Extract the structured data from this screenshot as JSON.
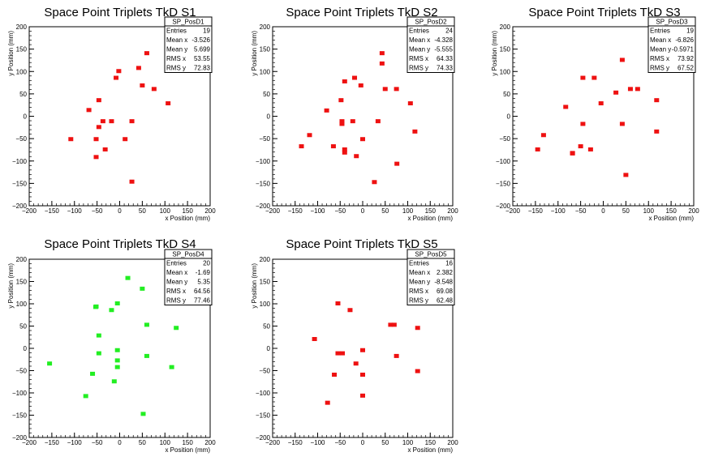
{
  "chart_data": [
    {
      "type": "scatter",
      "title": "Space Point Triplets TkD S1",
      "xlabel": "x Position (mm)",
      "ylabel": "y Position (mm)",
      "xlim": [
        -200,
        200
      ],
      "ylim": [
        -200,
        200
      ],
      "xticks": [
        "−200",
        "−150",
        "−100",
        "−50",
        "0",
        "50",
        "100",
        "150",
        "200"
      ],
      "yticks": [
        "−200",
        "−150",
        "−100",
        "−50",
        "0",
        "50",
        "100",
        "150",
        "200"
      ],
      "marker_color": "#ee1111",
      "stats": {
        "name": "SP_PosD1",
        "rows": [
          {
            "label": "Entries",
            "value": "19"
          },
          {
            "label": "Mean x",
            "value": "-3.526"
          },
          {
            "label": "Mean y",
            "value": "5.699"
          },
          {
            "label": "RMS x",
            "value": "53.55"
          },
          {
            "label": "RMS y",
            "value": "72.83"
          }
        ]
      },
      "points": [
        [
          -108,
          -52
        ],
        [
          -68,
          13
        ],
        [
          -52,
          -92
        ],
        [
          -52,
          -52
        ],
        [
          -46,
          -25
        ],
        [
          -46,
          35
        ],
        [
          -37,
          -12
        ],
        [
          -32,
          -75
        ],
        [
          -18,
          -12
        ],
        [
          -8,
          85
        ],
        [
          -2,
          100
        ],
        [
          12,
          -52
        ],
        [
          27,
          -147
        ],
        [
          27,
          -12
        ],
        [
          42,
          107
        ],
        [
          50,
          68
        ],
        [
          60,
          140
        ],
        [
          76,
          60
        ],
        [
          107,
          28
        ]
      ]
    },
    {
      "type": "scatter",
      "title": "Space Point Triplets TkD S2",
      "xlabel": "x Position (mm)",
      "ylabel": "y Position (mm)",
      "xlim": [
        -200,
        200
      ],
      "ylim": [
        -200,
        200
      ],
      "xticks": [
        "−200",
        "−150",
        "−100",
        "−50",
        "0",
        "50",
        "100",
        "150",
        "200"
      ],
      "yticks": [
        "−200",
        "−150",
        "−100",
        "−50",
        "0",
        "50",
        "100",
        "150",
        "200"
      ],
      "marker_color": "#ee1111",
      "stats": {
        "name": "SP_PosD2",
        "rows": [
          {
            "label": "Entries",
            "value": "24"
          },
          {
            "label": "Mean x",
            "value": "-4.328"
          },
          {
            "label": "Mean y",
            "value": "-5.555"
          },
          {
            "label": "RMS x",
            "value": "64.33"
          },
          {
            "label": "RMS y",
            "value": "74.33"
          }
        ]
      },
      "points": [
        [
          -136,
          -68
        ],
        [
          -118,
          -43
        ],
        [
          -80,
          12
        ],
        [
          -65,
          -68
        ],
        [
          -48,
          35
        ],
        [
          -46,
          -12
        ],
        [
          -46,
          -18
        ],
        [
          -40,
          -75
        ],
        [
          -40,
          -82
        ],
        [
          -40,
          77
        ],
        [
          -22,
          -12
        ],
        [
          -18,
          85
        ],
        [
          -14,
          -90
        ],
        [
          -4,
          68
        ],
        [
          0,
          -52
        ],
        [
          26,
          -148
        ],
        [
          34,
          -12
        ],
        [
          43,
          140
        ],
        [
          43,
          117
        ],
        [
          50,
          60
        ],
        [
          75,
          60
        ],
        [
          76,
          -107
        ],
        [
          106,
          28
        ],
        [
          116,
          -35
        ]
      ]
    },
    {
      "type": "scatter",
      "title": "Space Point Triplets TkD S3",
      "xlabel": "x Position (mm)",
      "ylabel": "y Position (mm)",
      "xlim": [
        -200,
        200
      ],
      "ylim": [
        -200,
        200
      ],
      "xticks": [
        "−200",
        "−150",
        "−100",
        "−50",
        "0",
        "50",
        "100",
        "150",
        "200"
      ],
      "yticks": [
        "−200",
        "−150",
        "−100",
        "−50",
        "0",
        "50",
        "100",
        "150",
        "200"
      ],
      "marker_color": "#ee1111",
      "stats": {
        "name": "SP_PosD3",
        "rows": [
          {
            "label": "Entries",
            "value": "19"
          },
          {
            "label": "Mean x",
            "value": "-6.826"
          },
          {
            "label": "Mean y",
            "value": "-0.5971"
          },
          {
            "label": "RMS x",
            "value": "73.92"
          },
          {
            "label": "RMS y",
            "value": "67.52"
          }
        ]
      },
      "points": [
        [
          -145,
          -75
        ],
        [
          -132,
          -43
        ],
        [
          -83,
          20
        ],
        [
          -68,
          -83
        ],
        [
          -50,
          -68
        ],
        [
          -45,
          85
        ],
        [
          -45,
          -18
        ],
        [
          -28,
          -75
        ],
        [
          -20,
          85
        ],
        [
          -5,
          28
        ],
        [
          28,
          52
        ],
        [
          42,
          125
        ],
        [
          42,
          -18
        ],
        [
          50,
          -132
        ],
        [
          60,
          60
        ],
        [
          76,
          60
        ],
        [
          118,
          35
        ],
        [
          118,
          -35
        ],
        [
          -68,
          -84
        ]
      ]
    },
    {
      "type": "scatter",
      "title": "Space Point Triplets TkD S4",
      "xlabel": "x Position (mm)",
      "ylabel": "y Position (mm)",
      "xlim": [
        -200,
        200
      ],
      "ylim": [
        -200,
        200
      ],
      "xticks": [
        "−200",
        "−150",
        "−100",
        "−50",
        "0",
        "50",
        "100",
        "150",
        "200"
      ],
      "yticks": [
        "−200",
        "−150",
        "−100",
        "−50",
        "0",
        "50",
        "100",
        "150",
        "200"
      ],
      "marker_color": "#22ee22",
      "stats": {
        "name": "SP_PosD4",
        "rows": [
          {
            "label": "Entries",
            "value": "20"
          },
          {
            "label": "Mean x",
            "value": "-1.69"
          },
          {
            "label": "Mean y",
            "value": "5.35"
          },
          {
            "label": "RMS x",
            "value": "64.56"
          },
          {
            "label": "RMS y",
            "value": "77.46"
          }
        ]
      },
      "points": [
        [
          -155,
          -35
        ],
        [
          -75,
          -108
        ],
        [
          -60,
          -58
        ],
        [
          -52,
          93
        ],
        [
          -46,
          28
        ],
        [
          -46,
          -12
        ],
        [
          -18,
          85
        ],
        [
          -12,
          -75
        ],
        [
          -5,
          100
        ],
        [
          -5,
          -5
        ],
        [
          -5,
          -28
        ],
        [
          -5,
          -43
        ],
        [
          18,
          157
        ],
        [
          50,
          133
        ],
        [
          52,
          -148
        ],
        [
          60,
          52
        ],
        [
          60,
          -18
        ],
        [
          115,
          -43
        ],
        [
          125,
          45
        ],
        [
          -53,
          92
        ]
      ]
    },
    {
      "type": "scatter",
      "title": "Space Point Triplets TkD S5",
      "xlabel": "x Position (mm)",
      "ylabel": "y Position (mm)",
      "xlim": [
        -200,
        200
      ],
      "ylim": [
        -200,
        200
      ],
      "xticks": [
        "−200",
        "−150",
        "−100",
        "−50",
        "0",
        "50",
        "100",
        "150",
        "200"
      ],
      "yticks": [
        "−200",
        "−150",
        "−100",
        "−50",
        "0",
        "50",
        "100",
        "150",
        "200"
      ],
      "marker_color": "#ee1111",
      "stats": {
        "name": "SP_PosD5",
        "rows": [
          {
            "label": "Entries",
            "value": "16"
          },
          {
            "label": "Mean x",
            "value": "2.382"
          },
          {
            "label": "Mean y",
            "value": "-8.548"
          },
          {
            "label": "RMS x",
            "value": "69.08"
          },
          {
            "label": "RMS y",
            "value": "62.48"
          }
        ]
      },
      "points": [
        [
          -107,
          20
        ],
        [
          -78,
          -123
        ],
        [
          -63,
          -60
        ],
        [
          -55,
          100
        ],
        [
          -55,
          -12
        ],
        [
          -45,
          -12
        ],
        [
          -28,
          85
        ],
        [
          -15,
          -35
        ],
        [
          0,
          -5
        ],
        [
          0,
          -60
        ],
        [
          0,
          -107
        ],
        [
          62,
          52
        ],
        [
          70,
          52
        ],
        [
          75,
          -18
        ],
        [
          122,
          45
        ],
        [
          122,
          -52
        ]
      ]
    }
  ]
}
